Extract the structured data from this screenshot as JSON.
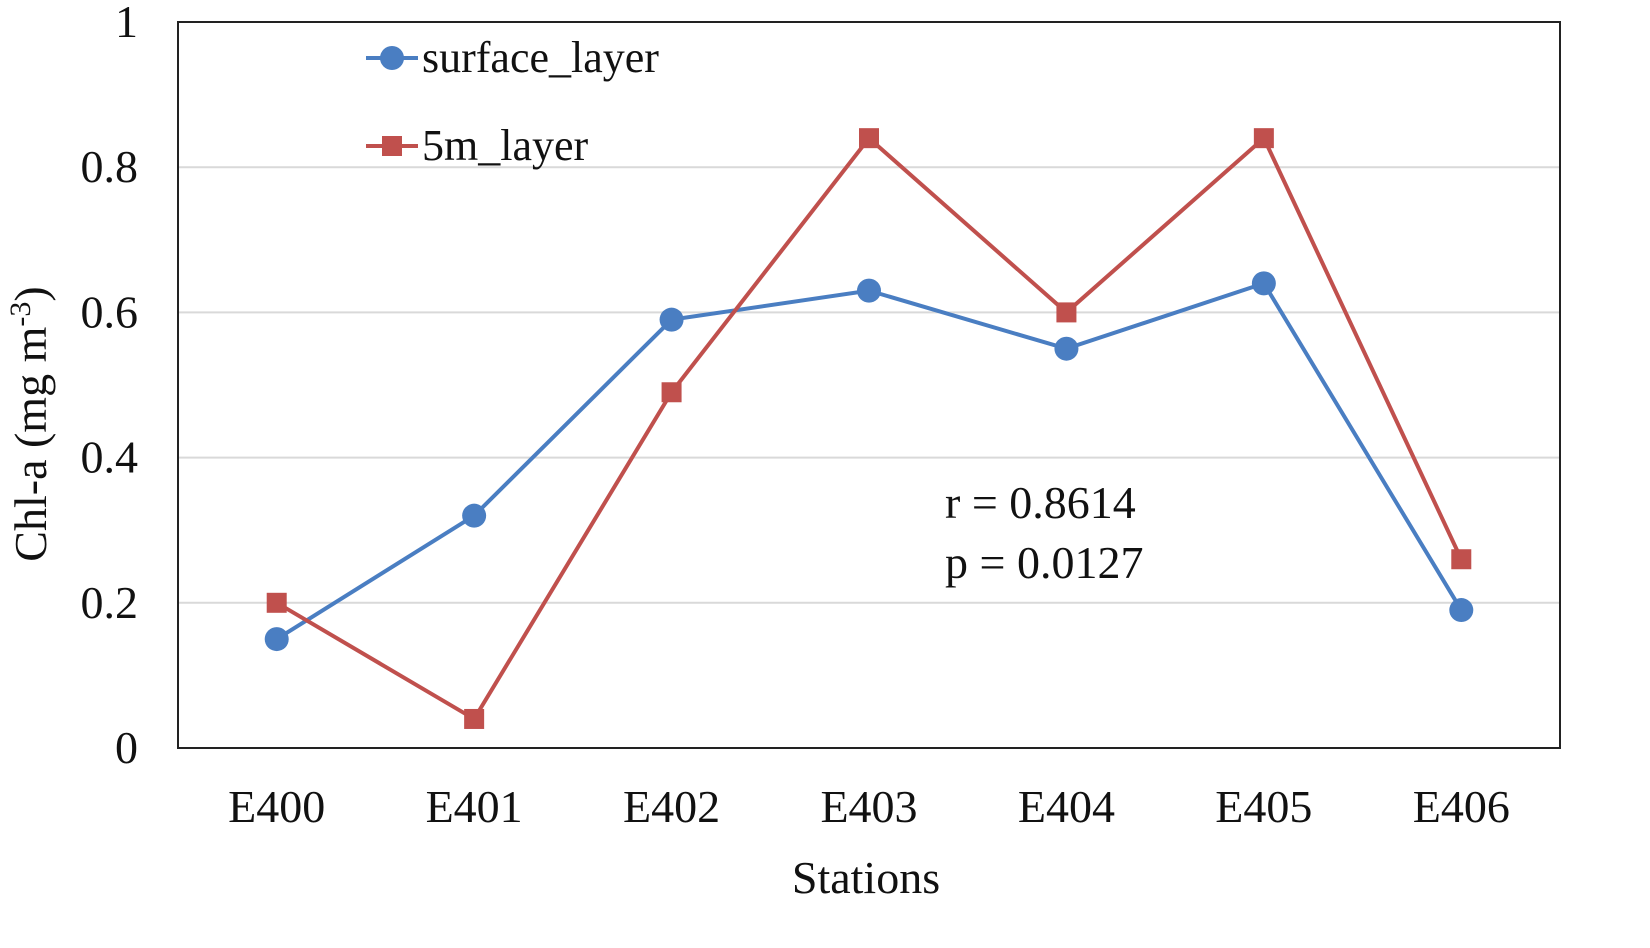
{
  "chart_data": {
    "type": "line",
    "categories": [
      "E400",
      "E401",
      "E402",
      "E403",
      "E404",
      "E405",
      "E406"
    ],
    "series": [
      {
        "name": "surface_layer",
        "values": [
          0.15,
          0.32,
          0.59,
          0.63,
          0.55,
          0.64,
          0.19
        ],
        "color": "#4a7ec2",
        "marker": "circle"
      },
      {
        "name": "5m_layer",
        "values": [
          0.2,
          0.04,
          0.49,
          0.84,
          0.6,
          0.84,
          0.26
        ],
        "color": "#c0504d",
        "marker": "square"
      }
    ],
    "xlabel": "Stations",
    "ylabel_main": "Chl-a (mg m",
    "ylabel_sup": "-3",
    "ylabel_end": ")",
    "ylim": [
      0,
      1
    ],
    "yticks": [
      "0",
      "0.2",
      "0.4",
      "0.6",
      "0.8",
      "1"
    ],
    "ytick_values": [
      0,
      0.2,
      0.4,
      0.6,
      0.8,
      1
    ],
    "grid": true,
    "legend_position": "top-left",
    "annotations": [
      "r = 0.8614",
      "p = 0.0127"
    ]
  }
}
